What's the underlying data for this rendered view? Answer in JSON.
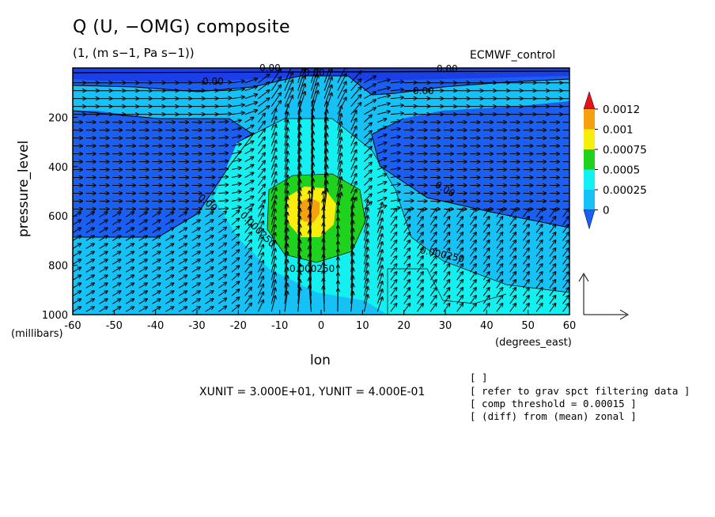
{
  "chart_data": {
    "type": "contour",
    "title": "Q (U, −OMG) composite",
    "subtitle": "(1, (m s−1, Pa s−1))",
    "dataset": "ECMWF_control",
    "xlabel": "lon",
    "xunit": "(degrees_east)",
    "ylabel": "pressure_level",
    "yunit": "(millibars)",
    "xlim": [
      -60,
      60
    ],
    "ylim": [
      1000,
      0
    ],
    "xticks": [
      -60,
      -50,
      -40,
      -30,
      -20,
      -10,
      0,
      10,
      20,
      30,
      40,
      50,
      60
    ],
    "yticks": [
      200,
      400,
      600,
      800,
      1000
    ],
    "colorbar": {
      "levels": [
        "0.0012",
        "0.001",
        "0.00075",
        "0.0005",
        "0.00025",
        "0"
      ],
      "colors": {
        "above": "#e8101a",
        "c1": "#f5a010",
        "c2": "#f7ee10",
        "c3": "#1ed21e",
        "c4": "#14f0f0",
        "c5": "#16c2f5",
        "c6": "#1a5ff2",
        "below": "#1a3ee8"
      }
    },
    "contour_labels": [
      "0.00",
      "0.00",
      "0.00",
      "0.00",
      "0.00",
      "0.00",
      "0.00",
      "0.000250",
      "0.000250",
      "0.000250"
    ],
    "units_text": "XUNIT = 3.000E+01, YUNIT = 4.000E-01",
    "notes": [
      "[  ]",
      "[ refer to grav spct filtering data ]",
      "[ comp threshold = 0.00015 ]",
      "[ (diff) from (mean) zonal ]"
    ]
  }
}
